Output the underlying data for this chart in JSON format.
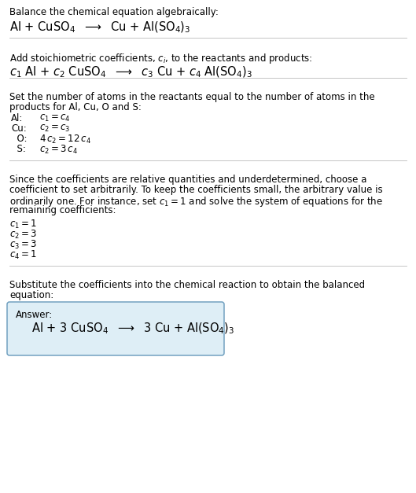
{
  "title_line1": "Balance the chemical equation algebraically:",
  "title_line2_math": "Al + CuSO$_4$  $\\longrightarrow$  Cu + Al(SO$_4$)$_3$",
  "section2_intro": "Add stoichiometric coefficients, $c_i$, to the reactants and products:",
  "section2_math": "$c_1$ Al + $c_2$ CuSO$_4$  $\\longrightarrow$  $c_3$ Cu + $c_4$ Al(SO$_4$)$_3$",
  "section3_intro1": "Set the number of atoms in the reactants equal to the number of atoms in the",
  "section3_intro2": "products for Al, Cu, O and S:",
  "section3_lines": [
    [
      "Al:",
      "$c_1 = c_4$"
    ],
    [
      "Cu:",
      "$c_2 = c_3$"
    ],
    [
      "  O:",
      "$4\\,c_2 = 12\\,c_4$"
    ],
    [
      "  S:",
      "$c_2 = 3\\,c_4$"
    ]
  ],
  "section4_intro": "Since the coefficients are relative quantities and underdetermined, choose a\ncoefficient to set arbitrarily. To keep the coefficients small, the arbitrary value is\nordinarily one. For instance, set $c_1 = 1$ and solve the system of equations for the\nremaining coefficients:",
  "section4_lines": [
    "$c_1 = 1$",
    "$c_2 = 3$",
    "$c_3 = 3$",
    "$c_4 = 1$"
  ],
  "section5_intro1": "Substitute the coefficients into the chemical reaction to obtain the balanced",
  "section5_intro2": "equation:",
  "answer_label": "Answer:",
  "answer_math": "Al + 3 CuSO$_4$  $\\longrightarrow$  3 Cu + Al(SO$_4$)$_3$",
  "bg_color": "#ffffff",
  "text_color": "#000000",
  "line_color": "#bbbbbb",
  "answer_box_color": "#deeef6",
  "answer_box_border": "#6699bb",
  "font_size_small": 8.5,
  "font_size_large": 10.5,
  "font_size_answer": 10.5
}
